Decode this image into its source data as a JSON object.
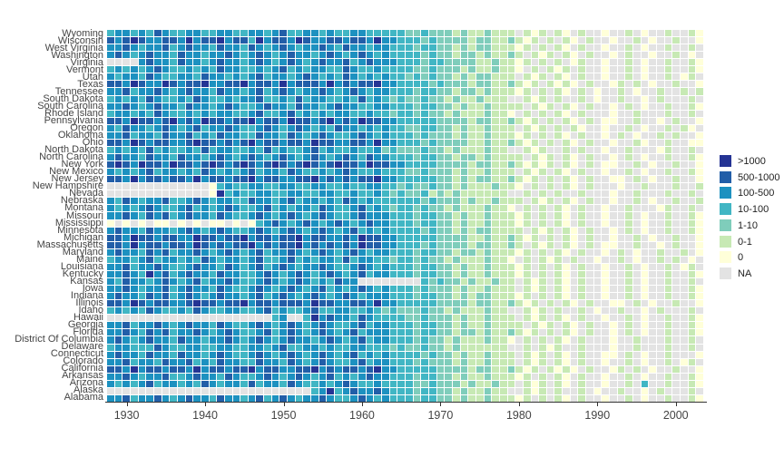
{
  "chart_data": {
    "type": "heatmap",
    "title": "",
    "xlabel": "",
    "ylabel": "",
    "x_range": [
      1928,
      2003
    ],
    "x_ticks": [
      "1930",
      "1940",
      "1950",
      "1960",
      "1970",
      "1980",
      "1990",
      "2000"
    ],
    "legend": {
      "position": "right",
      "entries": [
        {
          "label": ">1000",
          "color": "#253494"
        },
        {
          "label": "500-1000",
          "color": "#225ea8"
        },
        {
          "label": "100-500",
          "color": "#1d91c0"
        },
        {
          "label": "10-100",
          "color": "#41b6c4"
        },
        {
          "label": "1-10",
          "color": "#7fcdbb"
        },
        {
          "label": "0-1",
          "color": "#c7e9b4"
        },
        {
          "label": "0",
          "color": "#ffffd9"
        },
        {
          "label": "NA",
          "color": "#e3e3e3"
        }
      ]
    },
    "code_map": {
      "7": ">1000",
      "6": "500-1000",
      "5": "100-500",
      "4": "10-100",
      "3": "1-10",
      "2": "0-1",
      "1": "0",
      "0": "NA"
    },
    "rows": [
      {
        "state": "Wyoming",
        "values": "4554546544554455445545644554544554444433433323223222021202102001002010020021"
      },
      {
        "state": "Wisconsin",
        "values": "6567655665756675664756657655665665755444343333233223212020210200100201002001"
      },
      {
        "state": "West Virginia",
        "values": "5565455645655465546545654556546554554443443323233222120202102001002010020020"
      },
      {
        "state": "Washington",
        "values": "5654565546554556545654565545654565454444343323323223202120210200102001002010"
      },
      {
        "state": "Virginia",
        "values": "0000565546554565545654565456556456555444344333322322120202012001002010020021"
      },
      {
        "state": "Vermont",
        "values": "4545456544545465544545645455446544544443343332322322102021202001002010020021"
      },
      {
        "state": "Utah",
        "values": "5455465445546554545645545654546545454434343323233222021202102001002010020120"
      },
      {
        "state": "Texas",
        "values": "6657655765667556675665756665756566755444434333233223212021210200120201002001"
      },
      {
        "state": "Tennessee",
        "values": "5564556545655465545645654556545654554443443323323222120202102010020100200202"
      },
      {
        "state": "South Dakota",
        "values": "4545465445465445455644546455445464543433433232232220021202002010020010200020"
      },
      {
        "state": "South Carolina",
        "values": "5565456554655456544565546554565544554443443323223222202120210200102010020021"
      },
      {
        "state": "Rhode Island",
        "values": "4554546544545455445644564545455445443443433232223221020202102000100200020020"
      },
      {
        "state": "Pennsylvania",
        "values": "6657665675657665667566576656756576655444443333233223212020210201100200102001"
      },
      {
        "state": "Oregon",
        "values": "5465545654564556544565456545465545454433443323223222021202021001002010020210"
      },
      {
        "state": "Oklahoma",
        "values": "5564554655645465544655465456544565454443433323223222120202102001020100202001"
      },
      {
        "state": "Ohio",
        "values": "6657656655676656567566566576655665755444343333223223212020210200100210020011"
      },
      {
        "state": "North Dakota",
        "values": "4545464544546455445464544564544544534333433232223220021200202001002000120020"
      },
      {
        "state": "North Carolina",
        "values": "5655465546554565456545654565456546554443443323323222202120210200102010020021"
      },
      {
        "state": "New York",
        "values": "6765766576656765676567656765676657665544443333233223212120210201100201002001"
      },
      {
        "state": "New Mexico",
        "values": "5454564554546545456455465445456544544433433323223222021202102001002010020021"
      },
      {
        "state": "New Jersey",
        "values": "6657566566575665667566556675656566755444443323233223212020210200110201002001"
      },
      {
        "state": "New Hampshire",
        "values": "0000000000000145445544554455445445544343343323222322102020210200010020002002"
      },
      {
        "state": "Nevada",
        "values": "0000000000000174544554455445544544543433423232222220020202002000100200020020"
      },
      {
        "state": "Nebraska",
        "values": "5465455644565455446554564554546545444444343332322322202120210200100201002002"
      },
      {
        "state": "Montana",
        "values": "5454565445645456544564545546544564543443433232223221020202102001002000120020"
      },
      {
        "state": "Missouri",
        "values": "5565465645655465445654565456544565554443443323223222120202102001002010020021"
      },
      {
        "state": "Mississippi",
        "values": "1010101101010110101456545654565456554443443323223222120202102001002010020021"
      },
      {
        "state": "Minnesota",
        "values": "5655465545654565445654565456545645454444343323233222202120210200102010020021"
      },
      {
        "state": "Michigan",
        "values": "6657665665576656675665667566556576655444443333223223212020210200100201002001"
      },
      {
        "state": "Massachusetts",
        "values": "6657566566576565667565667565656576655444343333233223202120210201100200102001"
      },
      {
        "state": "Maryland",
        "values": "5655465645565456545645565456545654554443443323323222120202102001020100200201"
      },
      {
        "state": "Maine",
        "values": "4554564554546545545644564545546455443443433232223221020212020010020100202010"
      },
      {
        "state": "Louisiana",
        "values": "5564556544565546545645654556544565454443443323223222120202102001002010020120"
      },
      {
        "state": "Kentucky",
        "values": "5565475645655465544565456545654564554443443323223222120202102001002010020021"
      },
      {
        "state": "Kansas",
        "values": "5465545654564556544565456545465500000000434332322322021202102001002010020020"
      },
      {
        "state": "Iowa",
        "values": "5565455645655465445654565456454565454443433323223222021202102001002010020021"
      },
      {
        "state": "Indiana",
        "values": "5655465645654565545645654565456545554443443323233222120202102001002010020021"
      },
      {
        "state": "Illinois",
        "values": "6657656655676656675665666576655665755444443333233223212020210200110201002001"
      },
      {
        "state": "Idaho",
        "values": "4545465445465445544564544564455445434333433232223220021202002010020010200020"
      },
      {
        "state": "Hawaii",
        "values": "0000000000000000000004500475655465444433433323223222021202102001002010020021"
      },
      {
        "state": "Georgia",
        "values": "5564556545655465445654565456544564554443443323223222202120210200102010020021"
      },
      {
        "state": "Florida",
        "values": "5565465645565456544564565456545645554443443323323223212020210200102010020021"
      },
      {
        "state": "District Of Columbia",
        "values": "5654565546554556545654565545654564554443433232223221020202102000100200020020"
      },
      {
        "state": "Delaware",
        "values": "4554446544554455445545644554544554443433433232222220020212002000100200020020"
      },
      {
        "state": "Connecticut",
        "values": "5655465546554565445654565456545645454444343323223222021202102001102010020001"
      },
      {
        "state": "Colorado",
        "values": "5564554655645465544655465456544564554443433323223222021202102001002010020120"
      },
      {
        "state": "California",
        "values": "6657566566575665667566556675656656755444443333233223212021210200120201002001"
      },
      {
        "state": "Arkansas",
        "values": "5565455644565546544565456545645456554443443323223222120202102001002010020021"
      },
      {
        "state": "Arizona",
        "values": "5454564554546545546455465445456544544443343332322322021202102001002040020021"
      },
      {
        "state": "Alaska",
        "values": "0000000000000000000000000045745655654443443323223220021202002010020010200020"
      },
      {
        "state": "Alabama",
        "values": "5564556545655465545645654556544565454443443323223222120202102001002010020021"
      }
    ]
  }
}
